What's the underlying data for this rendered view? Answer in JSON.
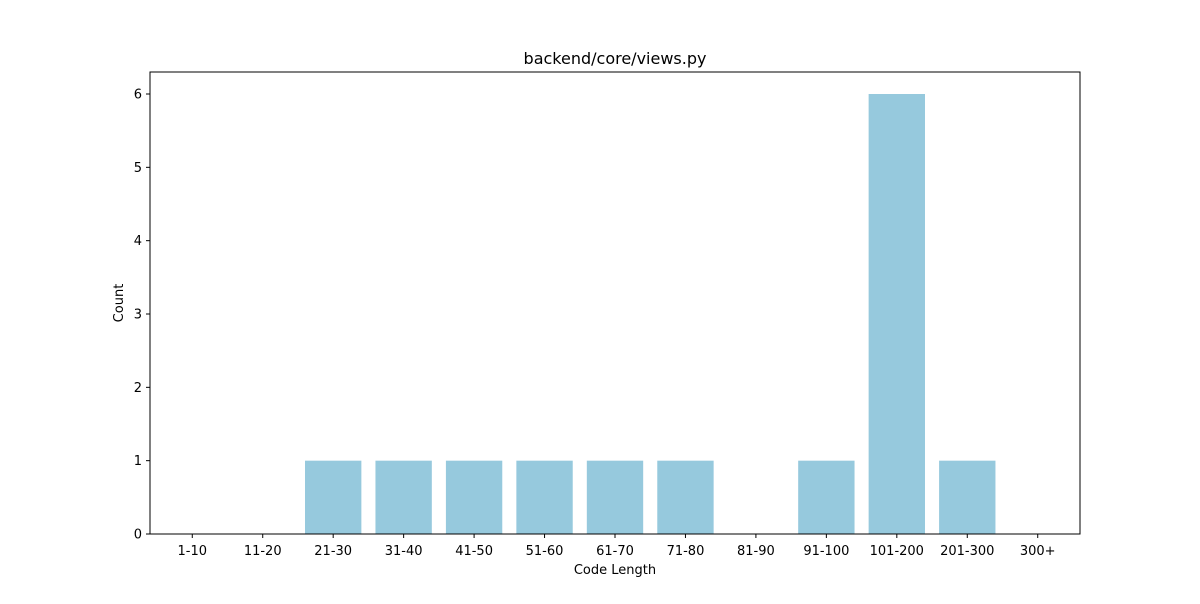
{
  "chart_data": {
    "type": "bar",
    "title": "backend/core/views.py",
    "xlabel": "Code Length",
    "ylabel": "Count",
    "categories": [
      "1-10",
      "11-20",
      "21-30",
      "31-40",
      "41-50",
      "51-60",
      "61-70",
      "71-80",
      "81-90",
      "91-100",
      "101-200",
      "201-300",
      "300+"
    ],
    "values": [
      0,
      0,
      1,
      1,
      1,
      1,
      1,
      1,
      0,
      1,
      6,
      1,
      0
    ],
    "ylim": [
      0,
      6.3
    ],
    "yticks": [
      0,
      1,
      2,
      3,
      4,
      5,
      6
    ],
    "bar_color": "#96c9dd",
    "grid": false,
    "legend": "none"
  }
}
